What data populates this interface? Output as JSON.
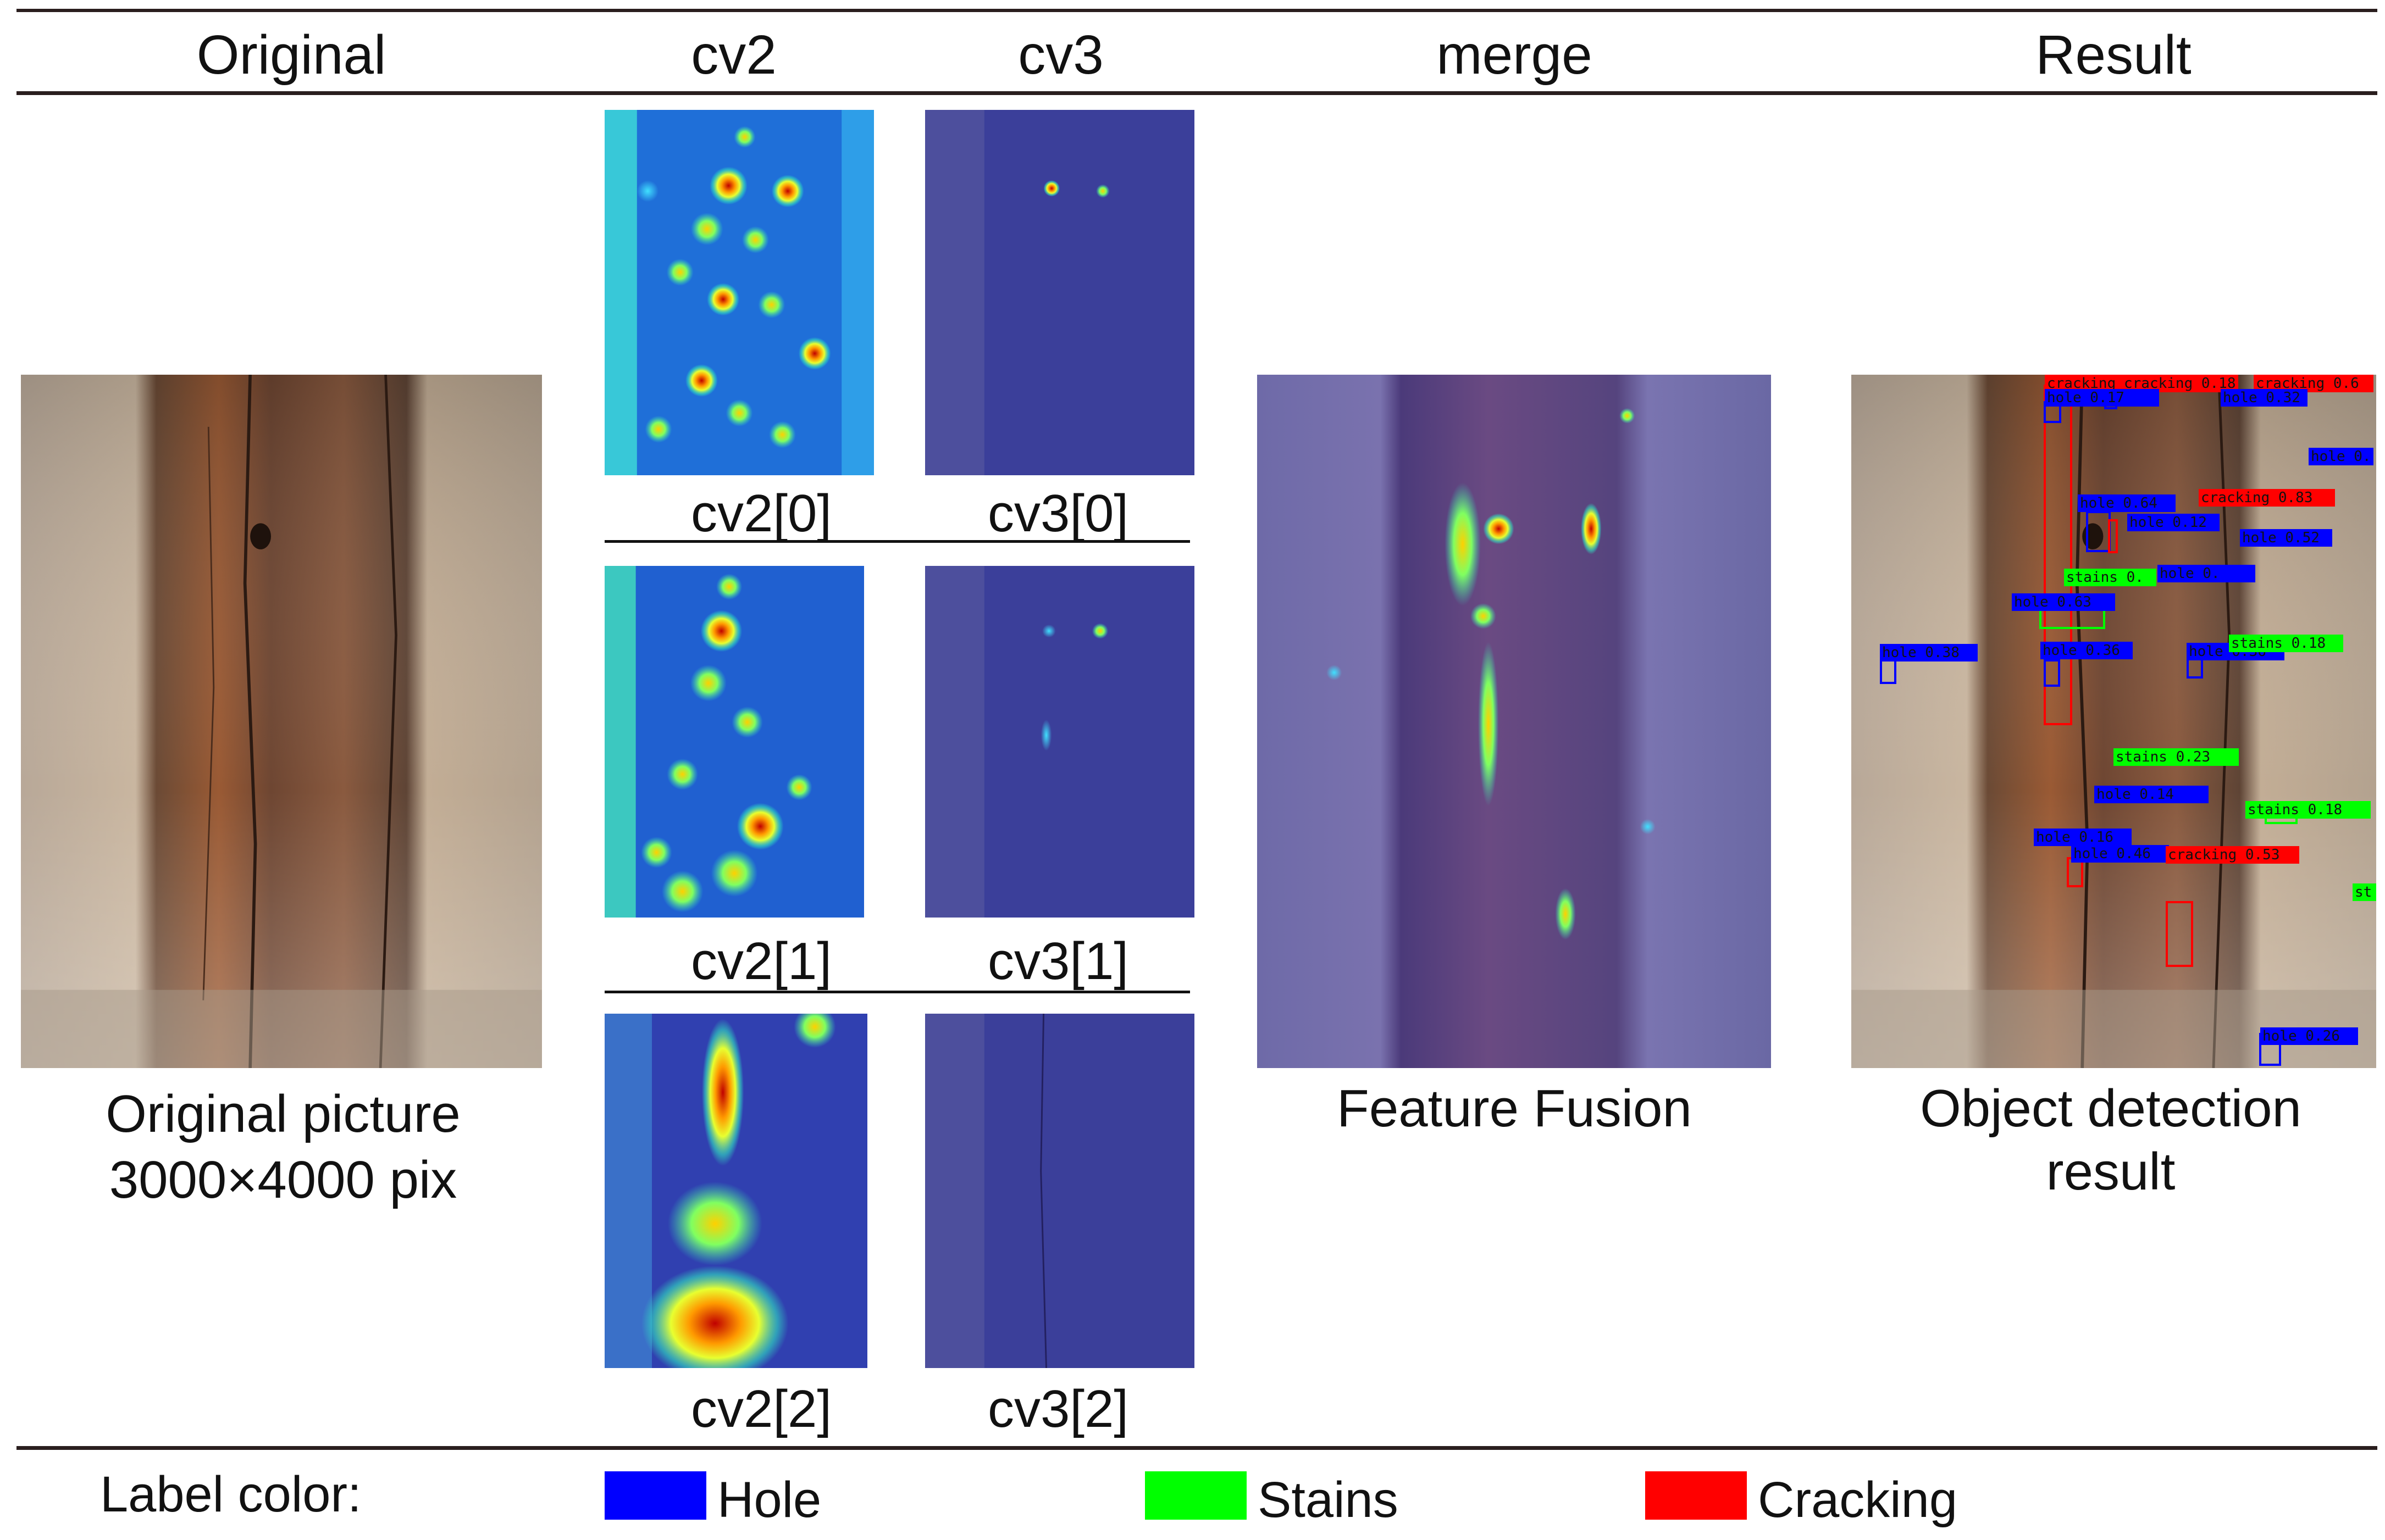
{
  "headers": {
    "original": "Original",
    "cv2": "cv2",
    "cv3": "cv3",
    "merge": "merge",
    "result": "Result"
  },
  "captions": {
    "original_line1": "Original picture",
    "original_line2": "3000×4000 pix",
    "merge": "Feature Fusion",
    "result_line1": "Object detection",
    "result_line2": "result"
  },
  "panel_labels": {
    "cv2_0": "cv2[0]",
    "cv3_0": "cv3[0]",
    "cv2_1": "cv2[1]",
    "cv3_1": "cv3[1]",
    "cv2_2": "cv2[2]",
    "cv3_2": "cv3[2]"
  },
  "legend": {
    "title": "Label color:",
    "items": [
      {
        "label": "Hole",
        "color": "#0000ff"
      },
      {
        "label": "Stains",
        "color": "#00ff00"
      },
      {
        "label": "Cracking",
        "color": "#ff0000"
      }
    ]
  },
  "detections": [
    {
      "label": "cracking 0.43",
      "cls": "cracking"
    },
    {
      "label": "cracking 0.18",
      "cls": "cracking"
    },
    {
      "label": "cracking 0.6",
      "cls": "cracking"
    },
    {
      "label": "hole 0.17",
      "cls": "hole"
    },
    {
      "label": "hole 0.32",
      "cls": "hole"
    },
    {
      "label": "hole 0.",
      "cls": "hole"
    },
    {
      "label": "hole 0.64",
      "cls": "hole"
    },
    {
      "label": "cracking 0.83",
      "cls": "cracking"
    },
    {
      "label": "hole 0.12",
      "cls": "hole"
    },
    {
      "label": "hole 0.52",
      "cls": "hole"
    },
    {
      "label": "stains 0.",
      "cls": "stains"
    },
    {
      "label": "hole 0.",
      "cls": "hole"
    },
    {
      "label": "hole 0.63",
      "cls": "hole"
    },
    {
      "label": "hole 0.38",
      "cls": "hole"
    },
    {
      "label": "hole 0.36",
      "cls": "hole"
    },
    {
      "label": "hole 0.36",
      "cls": "hole"
    },
    {
      "label": "stains 0.18",
      "cls": "stains"
    },
    {
      "label": "stains 0.23",
      "cls": "stains"
    },
    {
      "label": "hole 0.14",
      "cls": "hole"
    },
    {
      "label": "stains 0.18",
      "cls": "stains"
    },
    {
      "label": "hole 0.16",
      "cls": "hole"
    },
    {
      "label": "hole 0.46",
      "cls": "hole"
    },
    {
      "label": "cracking 0.53",
      "cls": "cracking"
    },
    {
      "label": "st",
      "cls": "stains"
    },
    {
      "label": "hole 0.26",
      "cls": "hole"
    }
  ]
}
